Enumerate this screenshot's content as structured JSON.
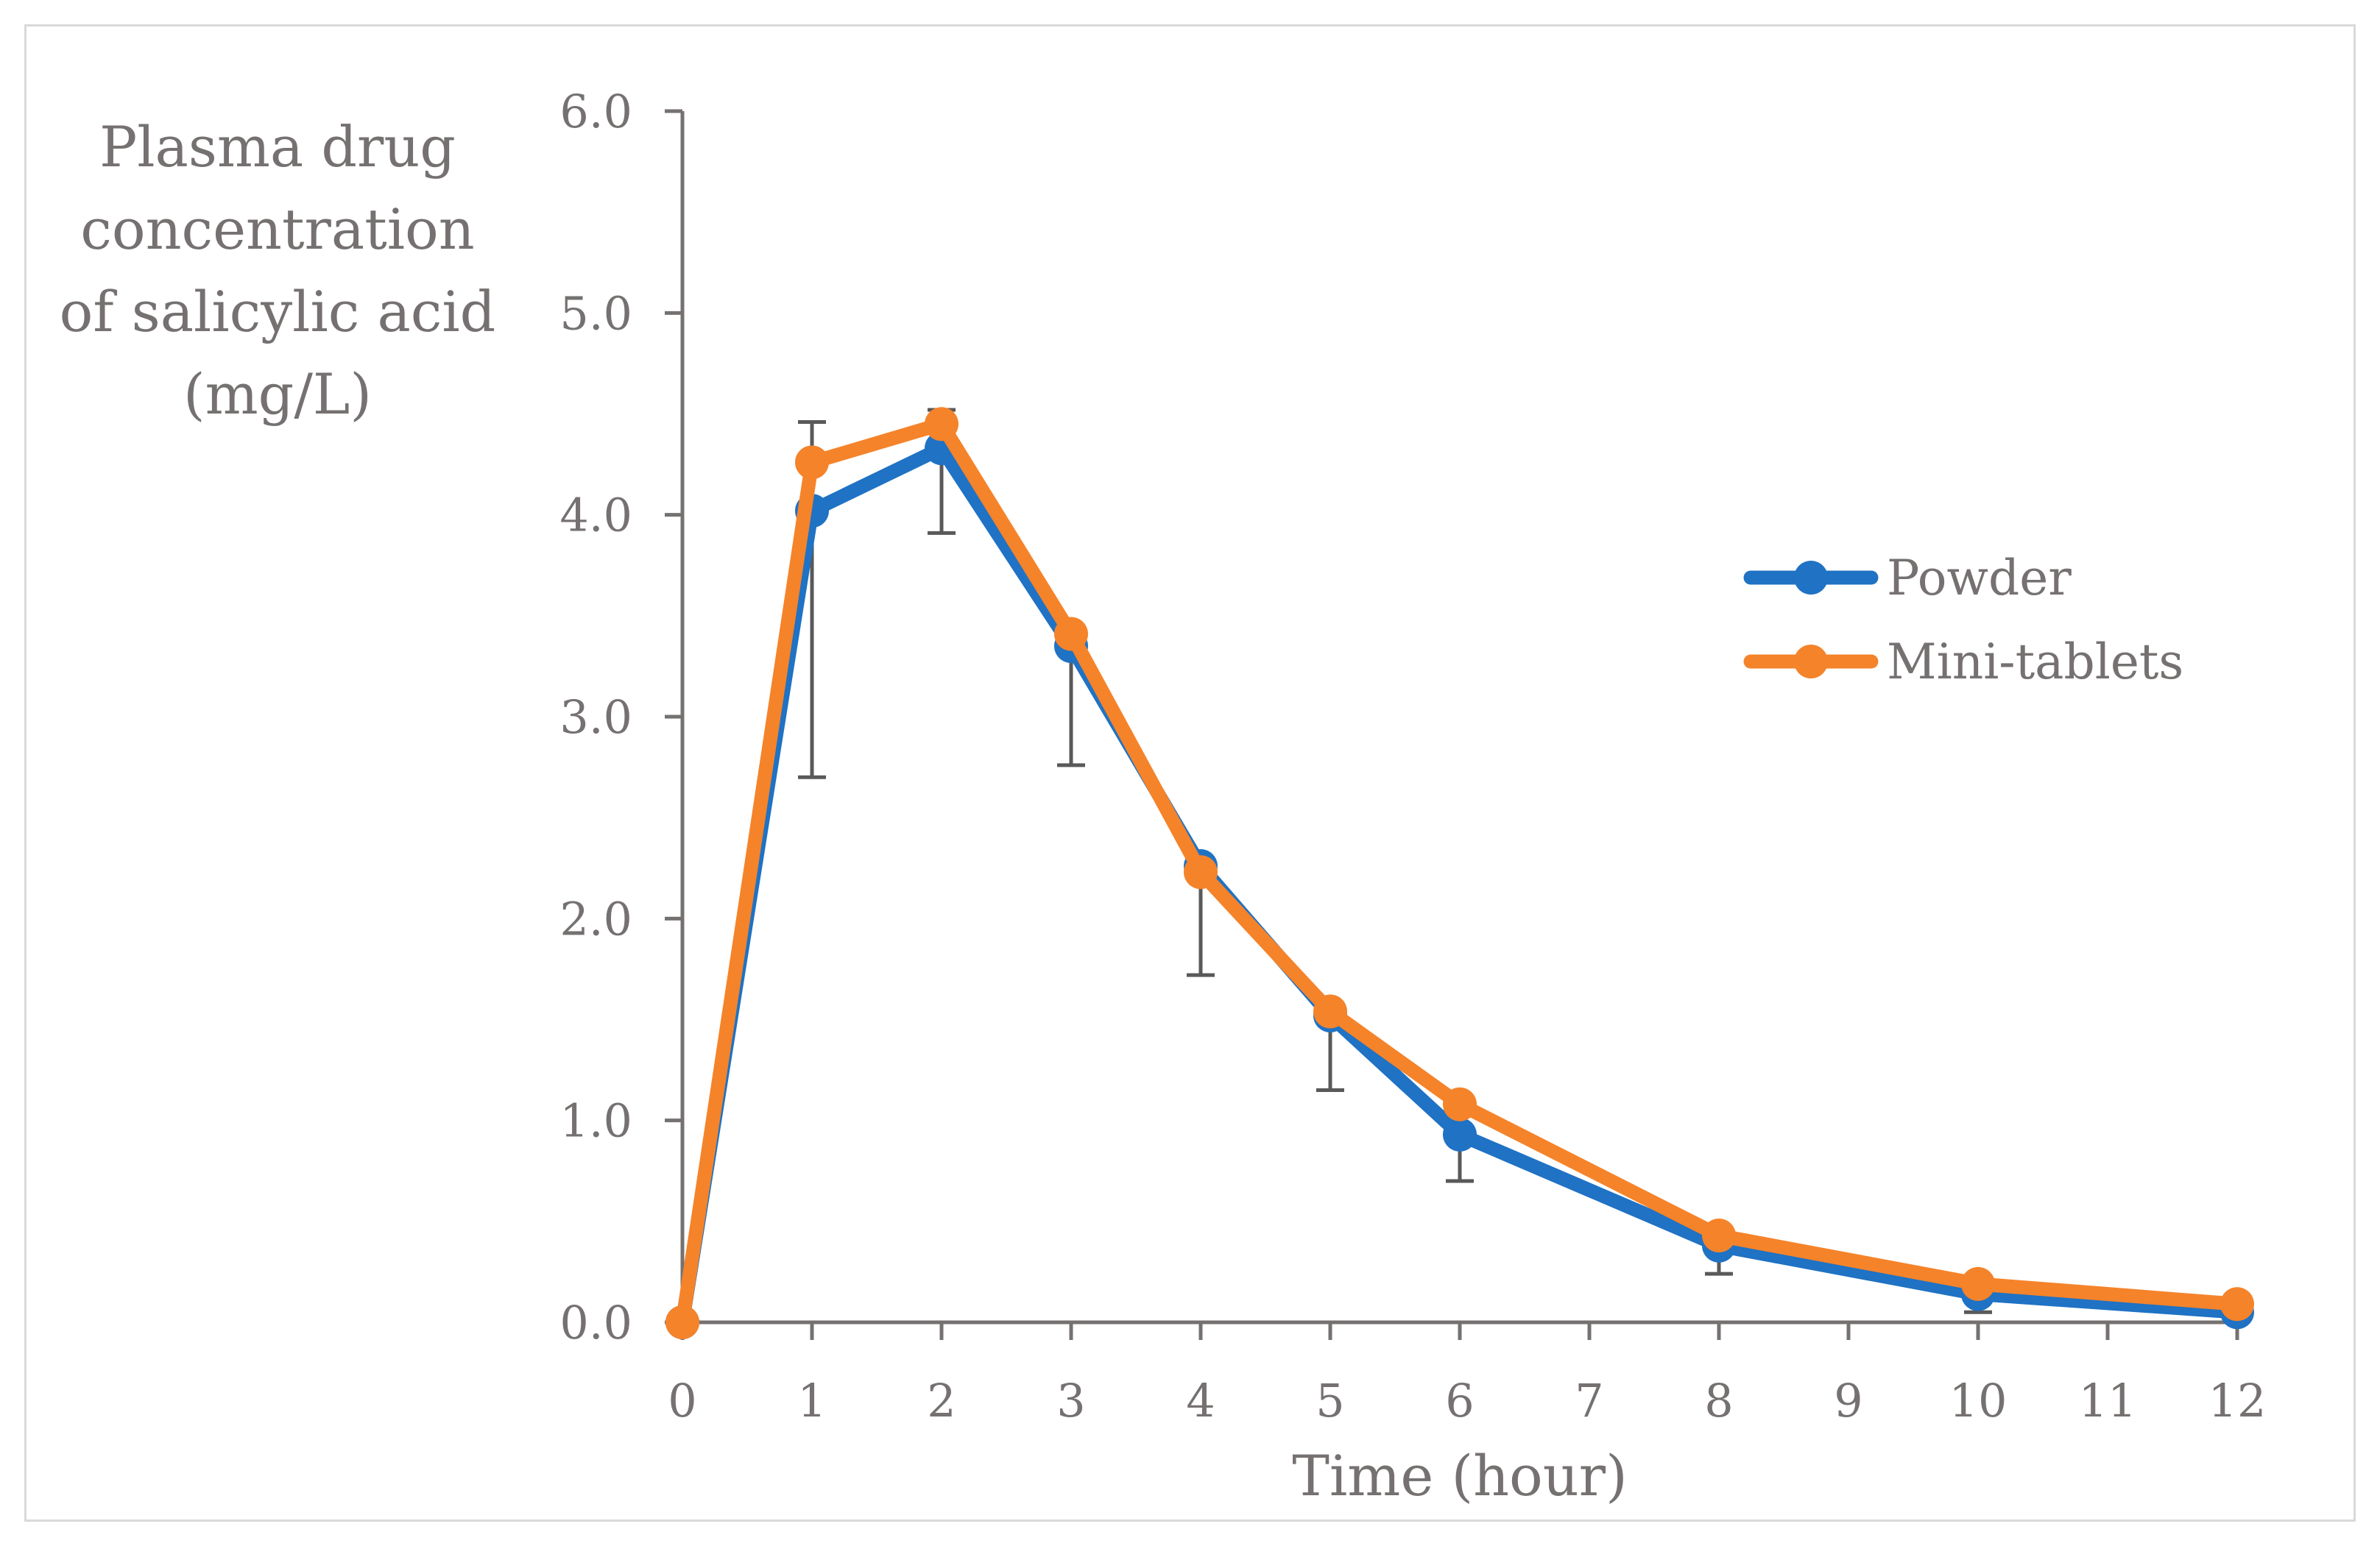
{
  "chart_data": {
    "type": "line",
    "title": "",
    "xlabel": "Time (hour)",
    "ylabel_lines": [
      "Plasma drug",
      "concentration",
      "of salicylic acid",
      "(mg/L)"
    ],
    "x_tick_labels": [
      "0",
      "1",
      "2",
      "3",
      "4",
      "5",
      "6",
      "7",
      "8",
      "9",
      "10",
      "11",
      "12"
    ],
    "y_tick_labels": [
      "0.0",
      "1.0",
      "2.0",
      "3.0",
      "4.0",
      "5.0",
      "6.0"
    ],
    "ylim": [
      0,
      6
    ],
    "y_step": 1,
    "x_categories": 13,
    "legend_position": "right",
    "series": [
      {
        "name": "Powder",
        "color": "#1f72c4",
        "points": [
          {
            "cat": 0,
            "y": 0.0
          },
          {
            "cat": 1,
            "y": 4.02
          },
          {
            "cat": 2,
            "y": 4.33
          },
          {
            "cat": 3,
            "y": 3.35
          },
          {
            "cat": 4,
            "y": 2.26
          },
          {
            "cat": 5,
            "y": 1.52
          },
          {
            "cat": 6,
            "y": 0.93
          },
          {
            "cat": 8,
            "y": 0.38
          },
          {
            "cat": 10,
            "y": 0.14
          },
          {
            "cat": 12,
            "y": 0.05
          }
        ],
        "error_bars": [
          {
            "cat": 1,
            "low": 2.7,
            "high": 4.46
          },
          {
            "cat": 2,
            "low": 3.91,
            "high": 4.52
          },
          {
            "cat": 3,
            "low": 2.76,
            "high": 3.35
          },
          {
            "cat": 4,
            "low": 1.72,
            "high": 2.26
          },
          {
            "cat": 5,
            "low": 1.15,
            "high": 1.52
          },
          {
            "cat": 6,
            "low": 0.7,
            "high": 0.93
          },
          {
            "cat": 8,
            "low": 0.24,
            "high": 0.38
          },
          {
            "cat": 10,
            "low": 0.05,
            "high": 0.14
          }
        ]
      },
      {
        "name": "Mini-tablets",
        "color": "#f5832a",
        "points": [
          {
            "cat": 0,
            "y": 0.0
          },
          {
            "cat": 1,
            "y": 4.26
          },
          {
            "cat": 2,
            "y": 4.45
          },
          {
            "cat": 3,
            "y": 3.41
          },
          {
            "cat": 4,
            "y": 2.23
          },
          {
            "cat": 5,
            "y": 1.54
          },
          {
            "cat": 6,
            "y": 1.08
          },
          {
            "cat": 8,
            "y": 0.43
          },
          {
            "cat": 10,
            "y": 0.19
          },
          {
            "cat": 12,
            "y": 0.09
          }
        ]
      }
    ],
    "colors": {
      "axis": "#767171",
      "error_bar": "#595959",
      "frame": "#d9d9d9"
    }
  }
}
